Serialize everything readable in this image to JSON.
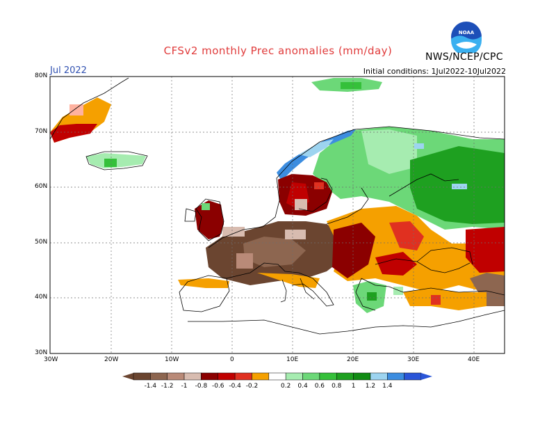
{
  "header": {
    "title": "CFSv2 monthly Prec anomalies (mm/day)",
    "month": "Jul 2022",
    "initial_conditions": "Initial conditions: 1Jul2022-10Jul2022",
    "agency": "NWS/NCEP/CPC",
    "logo_text": "NOAA"
  },
  "map": {
    "lon_range": [
      -30,
      45
    ],
    "lat_range": [
      30,
      80
    ],
    "lon_ticks": [
      "30W",
      "20W",
      "10W",
      "0",
      "10E",
      "20E",
      "30E",
      "40E"
    ],
    "lat_ticks": [
      "80N",
      "70N",
      "60N",
      "50N",
      "40N",
      "30N"
    ]
  },
  "legend": {
    "labels": [
      "-1.4",
      "-1.2",
      "-1",
      "-0.8",
      "-0.6",
      "-0.4",
      "-0.2",
      "0.2",
      "0.4",
      "0.6",
      "0.8",
      "1",
      "1.2",
      "1.4"
    ],
    "colors": [
      "#6b4530",
      "#8d6650",
      "#b98a78",
      "#d8bcb0",
      "#8b0000",
      "#c00000",
      "#e03020",
      "#f5a000",
      "#ffffff",
      "#a6ecb0",
      "#6cd878",
      "#35c03a",
      "#1ea020",
      "#118c14",
      "#9dd4f0",
      "#3c8de0",
      "#2a55d8"
    ]
  },
  "anomaly_patches": [
    {
      "region": "Greenland east coast",
      "class": "orange"
    },
    {
      "region": "Greenland SE tip",
      "class": "darkred"
    },
    {
      "region": "Iceland",
      "class": "lightgreen"
    },
    {
      "region": "Svalbard",
      "class": "green"
    },
    {
      "region": "Norway coast",
      "class": "blue"
    },
    {
      "region": "Scandinavia",
      "class": "green"
    },
    {
      "region": "Russia",
      "class": "green"
    },
    {
      "region": "Southern Scandinavia",
      "class": "darkred"
    },
    {
      "region": "Western & central Europe",
      "class": "brown"
    },
    {
      "region": "Eastern Europe",
      "class": "orange"
    },
    {
      "region": "Black Sea region",
      "class": "red"
    },
    {
      "region": "Greece",
      "class": "green"
    }
  ]
}
